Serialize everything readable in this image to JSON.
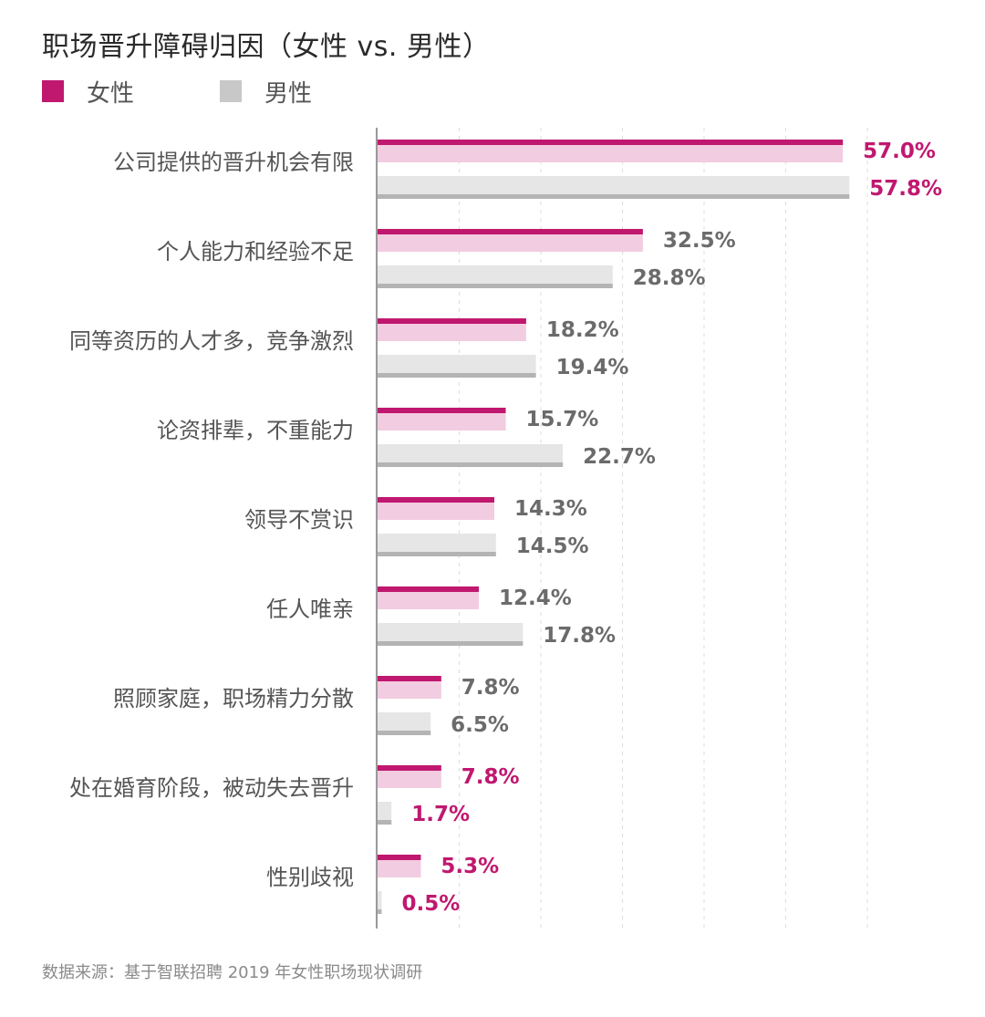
{
  "title": "职场晋升障碍归因（女性 vs. 男性）",
  "legend": [
    {
      "label": "女性",
      "color": "#c0186f"
    },
    {
      "label": "男性",
      "color": "#c8c8c8"
    }
  ],
  "source": "数据来源：基于智联招聘 2019 年女性职场现状调研",
  "chart_data": {
    "type": "bar",
    "orientation": "horizontal",
    "title": "职场晋升障碍归因（女性 vs. 男性）",
    "categories": [
      "公司提供的晋升机会有限",
      "个人能力和经验不足",
      "同等资历的人才多，竞争激烈",
      "论资排辈，不重能力",
      "领导不赏识",
      "任人唯亲",
      "照顾家庭，职场精力分散",
      "处在婚育阶段，被动失去晋升",
      "性别歧视"
    ],
    "series": [
      {
        "name": "女性",
        "values": [
          57.0,
          32.5,
          18.2,
          15.7,
          14.3,
          12.4,
          7.8,
          7.8,
          5.3
        ]
      },
      {
        "name": "男性",
        "values": [
          57.8,
          28.8,
          19.4,
          22.7,
          14.5,
          17.8,
          6.5,
          1.7,
          0.5
        ]
      }
    ],
    "value_labels": {
      "女性": [
        "57.0%",
        "32.5%",
        "18.2%",
        "15.7%",
        "14.3%",
        "12.4%",
        "7.8%",
        "7.8%",
        "5.3%"
      ],
      "男性": [
        "57.8%",
        "28.8%",
        "19.4%",
        "22.7%",
        "14.5%",
        "17.8%",
        "6.5%",
        "1.7%",
        "0.5%"
      ]
    },
    "highlighted_categories": [
      "公司提供的晋升机会有限",
      "处在婚育阶段，被动失去晋升",
      "性别歧视"
    ],
    "xlim": [
      0,
      70
    ],
    "grid": true,
    "xlabel": "",
    "ylabel": "",
    "colors": {
      "female_fill": "#f2cce0",
      "female_edge": "#c0186f",
      "male_fill": "#e6e6e6",
      "male_edge": "#b4b4b4",
      "label_highlight": "#c0186f",
      "label_normal": "#6b6b6b"
    }
  }
}
